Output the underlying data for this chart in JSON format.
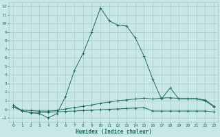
{
  "xlabel": "Humidex (Indice chaleur)",
  "line1_x": [
    0,
    1,
    2,
    3,
    4,
    5,
    6,
    7,
    8,
    9,
    10,
    11,
    12,
    13,
    14,
    15,
    16,
    17,
    18,
    19,
    20,
    21,
    22,
    23
  ],
  "line1_y": [
    0.3,
    -0.2,
    -0.35,
    -0.35,
    -0.35,
    -0.3,
    -0.25,
    -0.2,
    -0.15,
    -0.1,
    -0.05,
    0.0,
    0.05,
    0.1,
    0.15,
    0.2,
    -0.2,
    -0.2,
    -0.2,
    -0.2,
    -0.2,
    -0.2,
    -0.2,
    -0.3
  ],
  "line2_x": [
    0,
    1,
    2,
    3,
    4,
    5,
    6,
    7,
    8,
    9,
    10,
    11,
    12,
    13,
    14,
    15,
    16,
    17,
    18,
    19,
    20,
    21,
    22,
    23
  ],
  "line2_y": [
    0.3,
    -0.1,
    -0.15,
    -0.2,
    -0.2,
    -0.15,
    0.05,
    0.2,
    0.35,
    0.5,
    0.7,
    0.85,
    1.0,
    1.1,
    1.2,
    1.3,
    1.2,
    1.3,
    1.35,
    1.25,
    1.25,
    1.25,
    1.1,
    0.4
  ],
  "line3_x": [
    0,
    1,
    2,
    3,
    4,
    5,
    6,
    7,
    8,
    9,
    10,
    11,
    12,
    13,
    14,
    15,
    16,
    17,
    18,
    19,
    20,
    21,
    22,
    23
  ],
  "line3_y": [
    0.5,
    -0.2,
    -0.4,
    -0.5,
    -1.0,
    -0.5,
    1.5,
    4.5,
    6.5,
    9.0,
    11.8,
    10.3,
    9.8,
    9.7,
    8.3,
    6.2,
    3.5,
    1.2,
    2.5,
    1.2,
    1.2,
    1.2,
    1.0,
    0.3
  ],
  "line_color": "#1e6b5e",
  "bg_color": "#c8e8e5",
  "grid_color": "#a8cac8",
  "ylim": [
    -1.5,
    12.5
  ],
  "xlim": [
    -0.5,
    23.5
  ],
  "yticks": [
    -1,
    0,
    1,
    2,
    3,
    4,
    5,
    6,
    7,
    8,
    9,
    10,
    11,
    12
  ],
  "xticks": [
    0,
    1,
    2,
    3,
    4,
    5,
    6,
    7,
    8,
    9,
    10,
    11,
    12,
    13,
    14,
    15,
    16,
    17,
    18,
    19,
    20,
    21,
    22,
    23
  ]
}
